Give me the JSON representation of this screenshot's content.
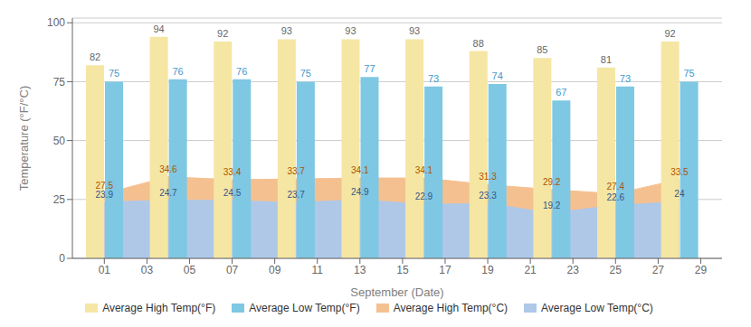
{
  "chart_data": {
    "type": "bar",
    "xlabel": "September (Date)",
    "ylabel": "Temperature (°F/°C)",
    "x": [
      1,
      4,
      7,
      10,
      13,
      16,
      19,
      22,
      25,
      28
    ],
    "xlim": [
      -0.5,
      30.0
    ],
    "xticks": [
      {
        "value": 1,
        "label": "01"
      },
      {
        "value": 3,
        "label": "03"
      },
      {
        "value": 5,
        "label": "05"
      },
      {
        "value": 7,
        "label": "07"
      },
      {
        "value": 9,
        "label": "09"
      },
      {
        "value": 11,
        "label": "11"
      },
      {
        "value": 13,
        "label": "13"
      },
      {
        "value": 15,
        "label": "15"
      },
      {
        "value": 17,
        "label": "17"
      },
      {
        "value": 19,
        "label": "19"
      },
      {
        "value": 21,
        "label": "21"
      },
      {
        "value": 23,
        "label": "23"
      },
      {
        "value": 25,
        "label": "25"
      },
      {
        "value": 27,
        "label": "27"
      },
      {
        "value": 29,
        "label": "29"
      }
    ],
    "ylim": [
      0,
      102
    ],
    "yticks": [
      0,
      25,
      50,
      75,
      100
    ],
    "grid": true,
    "legend": "bottom",
    "data_labels": true,
    "series": [
      {
        "name": "Average High Temp(°F)",
        "type": "bar",
        "color": "#F5E6A3",
        "values": [
          82,
          94,
          92,
          93,
          93,
          93,
          88,
          85,
          81,
          92
        ]
      },
      {
        "name": "Average Low Temp(°F)",
        "type": "bar",
        "color": "#7EC8E3",
        "values": [
          75,
          76,
          76,
          75,
          77,
          73,
          74,
          67,
          73,
          75
        ]
      },
      {
        "name": "Average High Temp(°C)",
        "type": "area",
        "color": "#F5C090",
        "values": [
          27.5,
          34.6,
          33.4,
          33.7,
          34.1,
          34.1,
          31.3,
          29.2,
          27.4,
          33.5
        ]
      },
      {
        "name": "Average Low Temp(°C)",
        "type": "area",
        "color": "#AFC8E8",
        "values": [
          23.9,
          24.7,
          24.5,
          23.7,
          24.9,
          22.9,
          23.3,
          19.2,
          22.6,
          24
        ]
      }
    ]
  }
}
